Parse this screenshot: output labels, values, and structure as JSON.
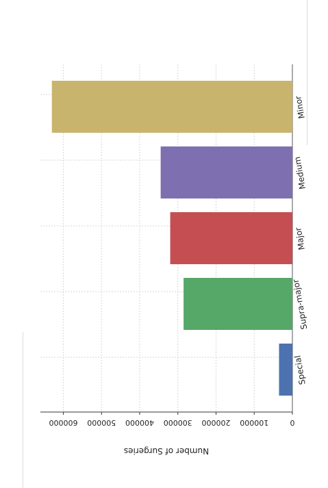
{
  "chart_data": {
    "type": "bar",
    "orientation": "horizontal",
    "categories": [
      "Minor",
      "Medium",
      "Major",
      "Supra-major",
      "Special"
    ],
    "values": [
      630000,
      345000,
      320000,
      285000,
      35000
    ],
    "colors": [
      "#c9b46e",
      "#7e6fb0",
      "#c44e52",
      "#55a868",
      "#4c72b0"
    ],
    "title": "",
    "xlabel": "Number of Surgeries",
    "ylabel": "",
    "xlim": [
      0,
      660000
    ],
    "xticks": [
      0,
      100000,
      200000,
      300000,
      400000,
      500000,
      600000
    ],
    "xtick_labels": [
      "0",
      "100000",
      "200000",
      "300000",
      "400000",
      "500000",
      "600000"
    ],
    "grid": true,
    "rotation": "180 degrees (image rotated)"
  }
}
